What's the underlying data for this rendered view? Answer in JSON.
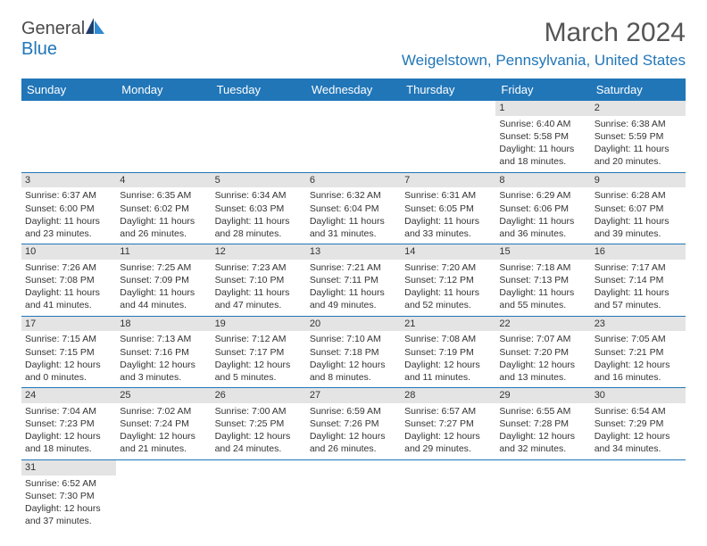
{
  "brand": {
    "part1": "General",
    "part2": "Blue"
  },
  "title": "March 2024",
  "location": "Weigelstown, Pennsylvania, United States",
  "colors": {
    "accent": "#2176b8",
    "header_text": "#ffffff",
    "daynum_bg": "#e4e4e4",
    "body_text": "#333333",
    "title_text": "#555555",
    "background": "#ffffff"
  },
  "typography": {
    "title_fontsize": 30,
    "location_fontsize": 17,
    "dayhead_fontsize": 13,
    "cell_fontsize": 10.5,
    "logo_fontsize": 20
  },
  "day_headers": [
    "Sunday",
    "Monday",
    "Tuesday",
    "Wednesday",
    "Thursday",
    "Friday",
    "Saturday"
  ],
  "weeks": [
    [
      {
        "n": "",
        "sr": "",
        "ss": "",
        "dl": ""
      },
      {
        "n": "",
        "sr": "",
        "ss": "",
        "dl": ""
      },
      {
        "n": "",
        "sr": "",
        "ss": "",
        "dl": ""
      },
      {
        "n": "",
        "sr": "",
        "ss": "",
        "dl": ""
      },
      {
        "n": "",
        "sr": "",
        "ss": "",
        "dl": ""
      },
      {
        "n": "1",
        "sr": "Sunrise: 6:40 AM",
        "ss": "Sunset: 5:58 PM",
        "dl": "Daylight: 11 hours and 18 minutes."
      },
      {
        "n": "2",
        "sr": "Sunrise: 6:38 AM",
        "ss": "Sunset: 5:59 PM",
        "dl": "Daylight: 11 hours and 20 minutes."
      }
    ],
    [
      {
        "n": "3",
        "sr": "Sunrise: 6:37 AM",
        "ss": "Sunset: 6:00 PM",
        "dl": "Daylight: 11 hours and 23 minutes."
      },
      {
        "n": "4",
        "sr": "Sunrise: 6:35 AM",
        "ss": "Sunset: 6:02 PM",
        "dl": "Daylight: 11 hours and 26 minutes."
      },
      {
        "n": "5",
        "sr": "Sunrise: 6:34 AM",
        "ss": "Sunset: 6:03 PM",
        "dl": "Daylight: 11 hours and 28 minutes."
      },
      {
        "n": "6",
        "sr": "Sunrise: 6:32 AM",
        "ss": "Sunset: 6:04 PM",
        "dl": "Daylight: 11 hours and 31 minutes."
      },
      {
        "n": "7",
        "sr": "Sunrise: 6:31 AM",
        "ss": "Sunset: 6:05 PM",
        "dl": "Daylight: 11 hours and 33 minutes."
      },
      {
        "n": "8",
        "sr": "Sunrise: 6:29 AM",
        "ss": "Sunset: 6:06 PM",
        "dl": "Daylight: 11 hours and 36 minutes."
      },
      {
        "n": "9",
        "sr": "Sunrise: 6:28 AM",
        "ss": "Sunset: 6:07 PM",
        "dl": "Daylight: 11 hours and 39 minutes."
      }
    ],
    [
      {
        "n": "10",
        "sr": "Sunrise: 7:26 AM",
        "ss": "Sunset: 7:08 PM",
        "dl": "Daylight: 11 hours and 41 minutes."
      },
      {
        "n": "11",
        "sr": "Sunrise: 7:25 AM",
        "ss": "Sunset: 7:09 PM",
        "dl": "Daylight: 11 hours and 44 minutes."
      },
      {
        "n": "12",
        "sr": "Sunrise: 7:23 AM",
        "ss": "Sunset: 7:10 PM",
        "dl": "Daylight: 11 hours and 47 minutes."
      },
      {
        "n": "13",
        "sr": "Sunrise: 7:21 AM",
        "ss": "Sunset: 7:11 PM",
        "dl": "Daylight: 11 hours and 49 minutes."
      },
      {
        "n": "14",
        "sr": "Sunrise: 7:20 AM",
        "ss": "Sunset: 7:12 PM",
        "dl": "Daylight: 11 hours and 52 minutes."
      },
      {
        "n": "15",
        "sr": "Sunrise: 7:18 AM",
        "ss": "Sunset: 7:13 PM",
        "dl": "Daylight: 11 hours and 55 minutes."
      },
      {
        "n": "16",
        "sr": "Sunrise: 7:17 AM",
        "ss": "Sunset: 7:14 PM",
        "dl": "Daylight: 11 hours and 57 minutes."
      }
    ],
    [
      {
        "n": "17",
        "sr": "Sunrise: 7:15 AM",
        "ss": "Sunset: 7:15 PM",
        "dl": "Daylight: 12 hours and 0 minutes."
      },
      {
        "n": "18",
        "sr": "Sunrise: 7:13 AM",
        "ss": "Sunset: 7:16 PM",
        "dl": "Daylight: 12 hours and 3 minutes."
      },
      {
        "n": "19",
        "sr": "Sunrise: 7:12 AM",
        "ss": "Sunset: 7:17 PM",
        "dl": "Daylight: 12 hours and 5 minutes."
      },
      {
        "n": "20",
        "sr": "Sunrise: 7:10 AM",
        "ss": "Sunset: 7:18 PM",
        "dl": "Daylight: 12 hours and 8 minutes."
      },
      {
        "n": "21",
        "sr": "Sunrise: 7:08 AM",
        "ss": "Sunset: 7:19 PM",
        "dl": "Daylight: 12 hours and 11 minutes."
      },
      {
        "n": "22",
        "sr": "Sunrise: 7:07 AM",
        "ss": "Sunset: 7:20 PM",
        "dl": "Daylight: 12 hours and 13 minutes."
      },
      {
        "n": "23",
        "sr": "Sunrise: 7:05 AM",
        "ss": "Sunset: 7:21 PM",
        "dl": "Daylight: 12 hours and 16 minutes."
      }
    ],
    [
      {
        "n": "24",
        "sr": "Sunrise: 7:04 AM",
        "ss": "Sunset: 7:23 PM",
        "dl": "Daylight: 12 hours and 18 minutes."
      },
      {
        "n": "25",
        "sr": "Sunrise: 7:02 AM",
        "ss": "Sunset: 7:24 PM",
        "dl": "Daylight: 12 hours and 21 minutes."
      },
      {
        "n": "26",
        "sr": "Sunrise: 7:00 AM",
        "ss": "Sunset: 7:25 PM",
        "dl": "Daylight: 12 hours and 24 minutes."
      },
      {
        "n": "27",
        "sr": "Sunrise: 6:59 AM",
        "ss": "Sunset: 7:26 PM",
        "dl": "Daylight: 12 hours and 26 minutes."
      },
      {
        "n": "28",
        "sr": "Sunrise: 6:57 AM",
        "ss": "Sunset: 7:27 PM",
        "dl": "Daylight: 12 hours and 29 minutes."
      },
      {
        "n": "29",
        "sr": "Sunrise: 6:55 AM",
        "ss": "Sunset: 7:28 PM",
        "dl": "Daylight: 12 hours and 32 minutes."
      },
      {
        "n": "30",
        "sr": "Sunrise: 6:54 AM",
        "ss": "Sunset: 7:29 PM",
        "dl": "Daylight: 12 hours and 34 minutes."
      }
    ],
    [
      {
        "n": "31",
        "sr": "Sunrise: 6:52 AM",
        "ss": "Sunset: 7:30 PM",
        "dl": "Daylight: 12 hours and 37 minutes."
      },
      {
        "n": "",
        "sr": "",
        "ss": "",
        "dl": ""
      },
      {
        "n": "",
        "sr": "",
        "ss": "",
        "dl": ""
      },
      {
        "n": "",
        "sr": "",
        "ss": "",
        "dl": ""
      },
      {
        "n": "",
        "sr": "",
        "ss": "",
        "dl": ""
      },
      {
        "n": "",
        "sr": "",
        "ss": "",
        "dl": ""
      },
      {
        "n": "",
        "sr": "",
        "ss": "",
        "dl": ""
      }
    ]
  ]
}
